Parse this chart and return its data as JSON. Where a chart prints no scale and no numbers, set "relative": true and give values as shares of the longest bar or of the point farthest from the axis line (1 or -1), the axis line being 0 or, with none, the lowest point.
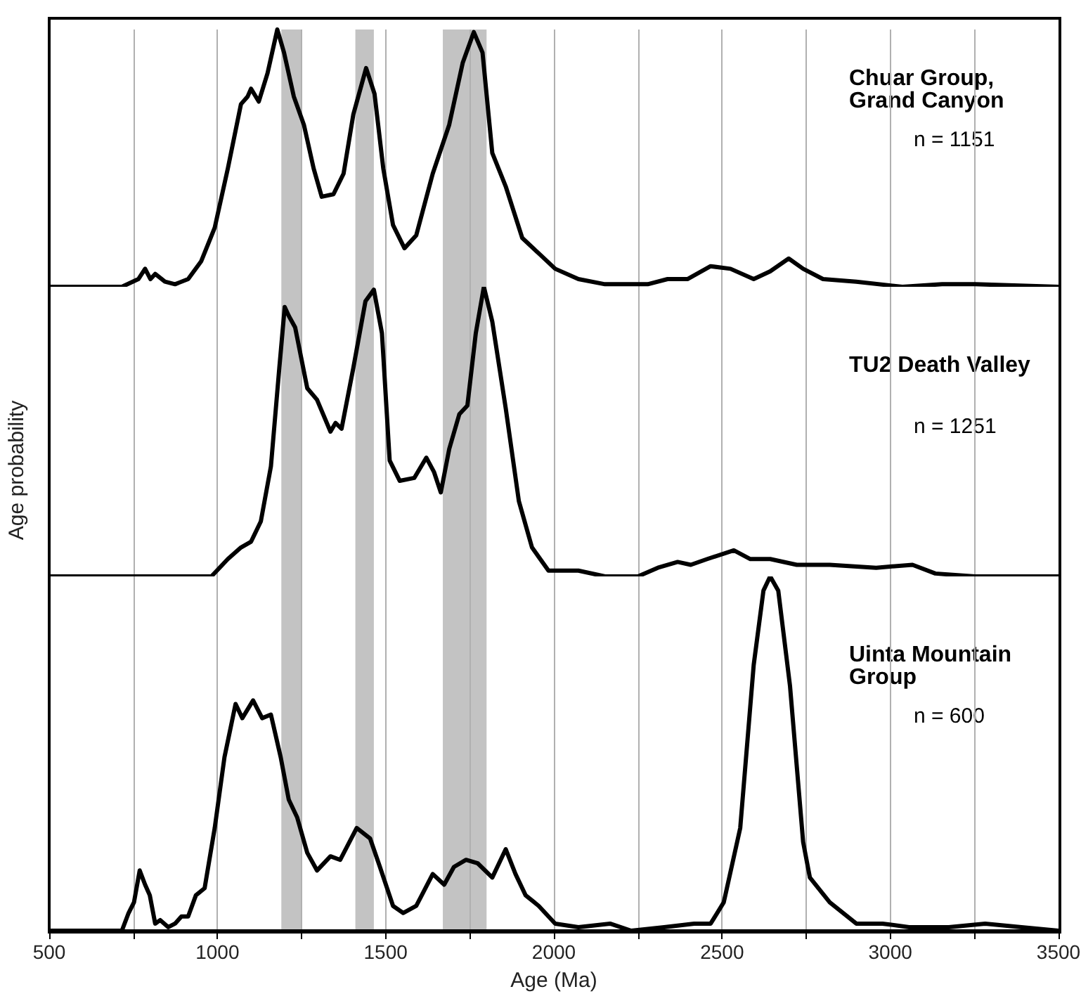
{
  "chart_data": [
    {
      "type": "line",
      "relative": true,
      "marker": "none",
      "grid": "x",
      "tick_labels": false,
      "xlim": [
        500,
        3500
      ],
      "xticks": [
        {
          "value": 500,
          "label": null
        },
        {
          "value": 750,
          "label": null
        },
        {
          "value": 1000,
          "label": null
        },
        {
          "value": 1250,
          "label": null
        },
        {
          "value": 1500,
          "label": null
        },
        {
          "value": 1750,
          "label": null
        },
        {
          "value": 2000,
          "label": null
        },
        {
          "value": 2250,
          "label": null
        },
        {
          "value": 2500,
          "label": null
        },
        {
          "value": 2750,
          "label": null
        },
        {
          "value": 3000,
          "label": null
        },
        {
          "value": 3250,
          "label": null
        },
        {
          "value": 3500,
          "label": null
        }
      ],
      "bands": [
        {
          "axis": "x",
          "from": 1190,
          "to": 1250,
          "color": "#c3c3c3"
        },
        {
          "axis": "x",
          "from": 1410,
          "to": 1465,
          "color": "#c3c3c3"
        },
        {
          "axis": "x",
          "from": 1670,
          "to": 1800,
          "color": "#c3c3c3"
        }
      ],
      "annotations": [
        "n = 1151"
      ],
      "series": [
        {
          "name": "Chuar Group, Grand Canyon",
          "color": "#000000",
          "x": [
            500,
            716,
            765,
            785,
            801,
            815,
            844,
            874,
            913,
            952,
            992,
            1031,
            1070,
            1090,
            1100,
            1123,
            1149,
            1178,
            1198,
            1227,
            1257,
            1286,
            1310,
            1345,
            1375,
            1404,
            1442,
            1467,
            1493,
            1522,
            1556,
            1591,
            1640,
            1689,
            1729,
            1762,
            1788,
            1817,
            1857,
            1906,
            1955,
            2004,
            2073,
            2152,
            2230,
            2279,
            2338,
            2397,
            2466,
            2525,
            2594,
            2643,
            2698,
            2741,
            2800,
            2899,
            3036,
            3154,
            3252,
            3500
          ],
          "values": [
            0,
            0,
            0.03,
            0.07,
            0.03,
            0.05,
            0.02,
            0.01,
            0.03,
            0.1,
            0.23,
            0.46,
            0.71,
            0.74,
            0.77,
            0.72,
            0.83,
            1.0,
            0.91,
            0.74,
            0.63,
            0.46,
            0.35,
            0.36,
            0.44,
            0.67,
            0.85,
            0.75,
            0.46,
            0.24,
            0.15,
            0.2,
            0.44,
            0.63,
            0.87,
            0.99,
            0.91,
            0.52,
            0.39,
            0.19,
            0.13,
            0.07,
            0.03,
            0.01,
            0.01,
            0.01,
            0.03,
            0.03,
            0.08,
            0.07,
            0.03,
            0.06,
            0.11,
            0.07,
            0.03,
            0.02,
            0.0,
            0.01,
            0.01,
            0.0
          ]
        }
      ]
    },
    {
      "type": "line",
      "relative": true,
      "marker": "none",
      "grid": "x",
      "tick_labels": false,
      "xlim": [
        500,
        3500
      ],
      "ylabel": "Age probability",
      "xticks": [
        {
          "value": 500,
          "label": null
        },
        {
          "value": 750,
          "label": null
        },
        {
          "value": 1000,
          "label": null
        },
        {
          "value": 1250,
          "label": null
        },
        {
          "value": 1500,
          "label": null
        },
        {
          "value": 1750,
          "label": null
        },
        {
          "value": 2000,
          "label": null
        },
        {
          "value": 2250,
          "label": null
        },
        {
          "value": 2500,
          "label": null
        },
        {
          "value": 2750,
          "label": null
        },
        {
          "value": 3000,
          "label": null
        },
        {
          "value": 3250,
          "label": null
        },
        {
          "value": 3500,
          "label": null
        }
      ],
      "bands": [
        {
          "axis": "x",
          "from": 1190,
          "to": 1250,
          "color": "#c3c3c3"
        },
        {
          "axis": "x",
          "from": 1410,
          "to": 1465,
          "color": "#c3c3c3"
        },
        {
          "axis": "x",
          "from": 1670,
          "to": 1800,
          "color": "#c3c3c3"
        }
      ],
      "annotations": [
        "n = 1251"
      ],
      "series": [
        {
          "name": "TU2 Death Valley",
          "color": "#000000",
          "x": [
            500,
            982,
            1031,
            1070,
            1100,
            1129,
            1159,
            1184,
            1200,
            1212,
            1231,
            1267,
            1296,
            1336,
            1351,
            1369,
            1404,
            1440,
            1465,
            1489,
            1512,
            1542,
            1585,
            1621,
            1644,
            1664,
            1689,
            1719,
            1743,
            1768,
            1792,
            1817,
            1857,
            1896,
            1935,
            1984,
            2073,
            2152,
            2250,
            2309,
            2368,
            2407,
            2456,
            2535,
            2584,
            2643,
            2722,
            2820,
            2958,
            3066,
            3134,
            3252,
            3500
          ],
          "values": [
            0,
            0,
            0.06,
            0.1,
            0.12,
            0.19,
            0.38,
            0.72,
            0.93,
            0.9,
            0.86,
            0.65,
            0.61,
            0.5,
            0.53,
            0.51,
            0.72,
            0.95,
            0.99,
            0.84,
            0.4,
            0.33,
            0.34,
            0.41,
            0.36,
            0.29,
            0.44,
            0.56,
            0.59,
            0.84,
            1.0,
            0.88,
            0.58,
            0.26,
            0.1,
            0.02,
            0.02,
            0,
            0.0,
            0.03,
            0.05,
            0.04,
            0.06,
            0.09,
            0.06,
            0.06,
            0.04,
            0.04,
            0.03,
            0.04,
            0.01,
            0.0,
            0
          ]
        }
      ]
    },
    {
      "type": "line",
      "relative": true,
      "marker": "none",
      "grid": "x",
      "tick_labels": "x",
      "xlim": [
        500,
        3500
      ],
      "xlabel": "Age (Ma)",
      "xticks": [
        500,
        {
          "value": 750,
          "label": null
        },
        1000,
        {
          "value": 1250,
          "label": null
        },
        1500,
        {
          "value": 1750,
          "label": null
        },
        2000,
        {
          "value": 2250,
          "label": null
        },
        2500,
        {
          "value": 2750,
          "label": null
        },
        3000,
        {
          "value": 3250,
          "label": null
        },
        3500
      ],
      "bands": [
        {
          "axis": "x",
          "from": 1190,
          "to": 1250,
          "color": "#c3c3c3"
        },
        {
          "axis": "x",
          "from": 1410,
          "to": 1465,
          "color": "#c3c3c3"
        },
        {
          "axis": "x",
          "from": 1670,
          "to": 1800,
          "color": "#c3c3c3"
        }
      ],
      "annotations": [
        "n = 600"
      ],
      "series": [
        {
          "name": "Uinta Mountain Group",
          "color": "#000000",
          "x": [
            500,
            716,
            736,
            752,
            769,
            785,
            799,
            815,
            830,
            854,
            874,
            893,
            913,
            936,
            962,
            992,
            1021,
            1054,
            1074,
            1106,
            1133,
            1159,
            1188,
            1212,
            1237,
            1267,
            1296,
            1336,
            1365,
            1414,
            1454,
            1483,
            1522,
            1552,
            1591,
            1640,
            1674,
            1703,
            1739,
            1774,
            1817,
            1857,
            1886,
            1916,
            1955,
            2004,
            2073,
            2167,
            2230,
            2328,
            2417,
            2466,
            2505,
            2554,
            2594,
            2623,
            2643,
            2667,
            2702,
            2741,
            2761,
            2820,
            2899,
            2977,
            3056,
            3174,
            3282,
            3390,
            3500
          ],
          "values": [
            0,
            0,
            0.05,
            0.08,
            0.17,
            0.13,
            0.1,
            0.02,
            0.03,
            0.01,
            0.02,
            0.04,
            0.04,
            0.1,
            0.12,
            0.29,
            0.49,
            0.64,
            0.6,
            0.65,
            0.6,
            0.61,
            0.49,
            0.37,
            0.32,
            0.22,
            0.17,
            0.21,
            0.2,
            0.29,
            0.26,
            0.18,
            0.07,
            0.05,
            0.07,
            0.16,
            0.13,
            0.18,
            0.2,
            0.19,
            0.15,
            0.23,
            0.16,
            0.1,
            0.07,
            0.02,
            0.01,
            0.02,
            0.0,
            0.01,
            0.02,
            0.02,
            0.08,
            0.29,
            0.75,
            0.96,
            1.0,
            0.96,
            0.69,
            0.25,
            0.15,
            0.08,
            0.02,
            0.02,
            0.01,
            0.01,
            0.02,
            0.01,
            0.0
          ]
        }
      ]
    }
  ]
}
